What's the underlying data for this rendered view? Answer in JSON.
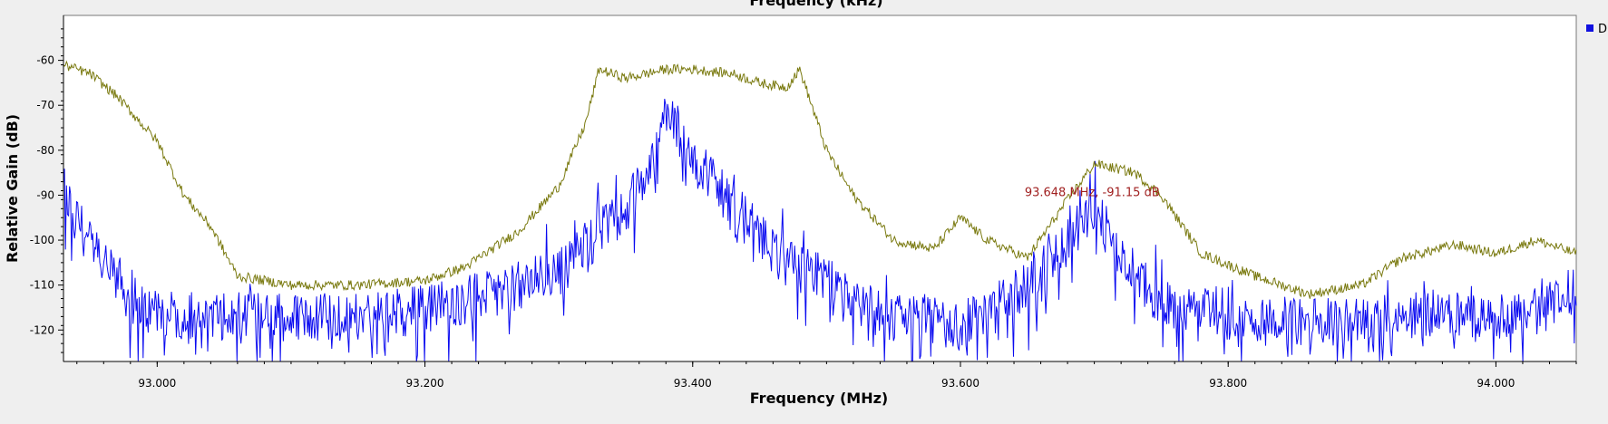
{
  "top_axis": {
    "label": "Frequency (kHz)"
  },
  "legend": {
    "visible_text": "D"
  },
  "colors": {
    "background": "#efefef",
    "plot_bg": "#ffffff",
    "series_data": "#0a0af0",
    "series_max_hold": "#7a7a10",
    "marker": "#a02020",
    "legend_box": "#1010e0"
  },
  "marker": {
    "label": "93.648 MHz, -91.15 dB"
  },
  "chart_data": {
    "type": "line",
    "title": "",
    "xlabel": "Frequency (MHz)",
    "ylabel": "Relative Gain (dB)",
    "xlim": [
      92.93,
      94.06
    ],
    "ylim": [
      -127,
      -50
    ],
    "x_ticks": [
      "93.000",
      "93.200",
      "93.400",
      "93.600",
      "93.800",
      "94.000"
    ],
    "y_ticks": [
      "-60",
      "-70",
      "-80",
      "-90",
      "-100",
      "-110",
      "-120"
    ],
    "grid": false,
    "legend_position": "right",
    "series": [
      {
        "name": "D",
        "style": "noisy-spectrum",
        "x": [
          92.93,
          92.95,
          92.98,
          93.0,
          93.05,
          93.1,
          93.15,
          93.2,
          93.25,
          93.3,
          93.32,
          93.35,
          93.37,
          93.38,
          93.4,
          93.42,
          93.45,
          93.47,
          93.5,
          93.52,
          93.55,
          93.6,
          93.63,
          93.65,
          93.67,
          93.69,
          93.7,
          93.72,
          93.75,
          93.8,
          93.85,
          93.9,
          93.95,
          94.0,
          94.03,
          94.06
        ],
        "values": [
          -88,
          -100,
          -112,
          -116,
          -116,
          -116,
          -116,
          -114,
          -111,
          -106,
          -100,
          -92,
          -82,
          -70,
          -80,
          -88,
          -98,
          -104,
          -108,
          -113,
          -116,
          -118,
          -113,
          -108,
          -103,
          -96,
          -91,
          -103,
          -113,
          -116,
          -117,
          -117,
          -115,
          -116,
          -114,
          -110
        ]
      },
      {
        "name": "",
        "style": "max-hold",
        "x": [
          92.93,
          92.95,
          92.97,
          93.0,
          93.02,
          93.04,
          93.06,
          93.1,
          93.15,
          93.2,
          93.23,
          93.25,
          93.27,
          93.3,
          93.32,
          93.33,
          93.35,
          93.38,
          93.4,
          93.43,
          93.45,
          93.47,
          93.48,
          93.5,
          93.52,
          93.55,
          93.58,
          93.6,
          93.62,
          93.65,
          93.68,
          93.7,
          93.73,
          93.75,
          93.78,
          93.82,
          93.86,
          93.9,
          93.93,
          93.97,
          94.0,
          94.03,
          94.06
        ],
        "values": [
          -61,
          -63,
          -68,
          -78,
          -90,
          -97,
          -108,
          -110,
          -110,
          -109,
          -106,
          -102,
          -98,
          -88,
          -74,
          -62,
          -64,
          -62,
          -62,
          -63,
          -65,
          -66,
          -62,
          -80,
          -90,
          -100,
          -102,
          -95,
          -100,
          -104,
          -91,
          -83,
          -85,
          -90,
          -103,
          -108,
          -112,
          -110,
          -104,
          -101,
          -103,
          -100,
          -103
        ]
      }
    ]
  }
}
